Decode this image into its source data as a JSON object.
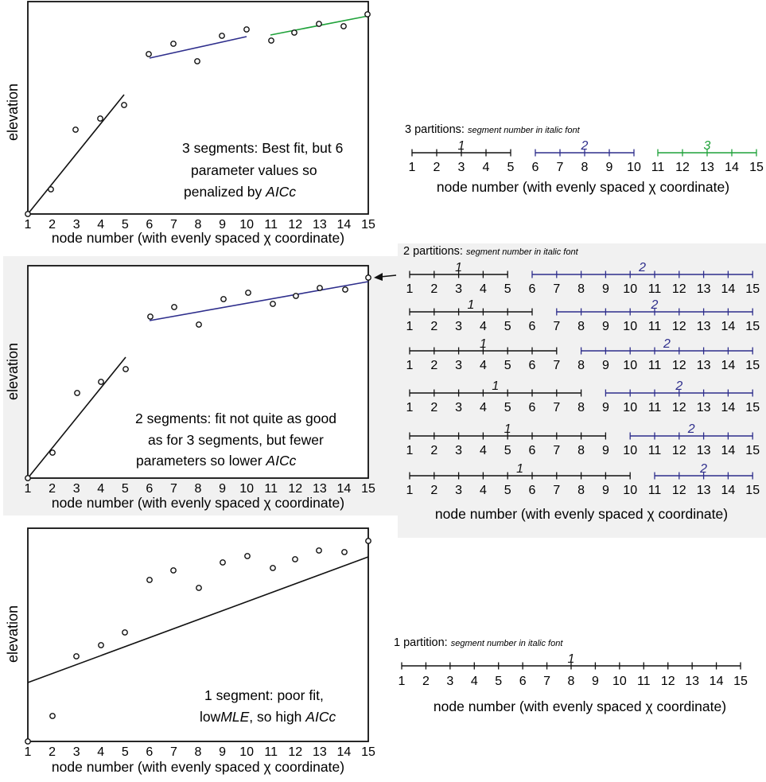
{
  "colors": {
    "seg1": "#111111",
    "seg2": "#2e2e8c",
    "seg3": "#1fa23a",
    "band": "#f1f1f1",
    "arrow": "#111111"
  },
  "axis_ticks": [
    "1",
    "2",
    "3",
    "4",
    "5",
    "6",
    "7",
    "8",
    "9",
    "10",
    "11",
    "12",
    "13",
    "14",
    "15"
  ],
  "segment_labels": [
    "1",
    "2",
    "3"
  ],
  "panels": {
    "three": {
      "ylabel": "elevation",
      "xlabel_prefix": "node number (with evenly spaced ",
      "xlabel_symbol": "χ",
      "xlabel_suffix": " coordinate)",
      "note_lines": [
        "3 segments: Best fit, but 6",
        "parameter values so",
        "penalized by "
      ],
      "note_em": "AICc"
    },
    "two": {
      "ylabel": "elevation",
      "xlabel_prefix": "node number (with evenly spaced ",
      "xlabel_symbol": "χ",
      "xlabel_suffix": "  coordinate)",
      "note_lines": [
        "2 segments: fit not quite as good",
        "as for 3 segments, but fewer",
        "parameters so lower "
      ],
      "note_em": "AICc"
    },
    "one": {
      "ylabel": "elevation",
      "xlabel_prefix": "node number (with evenly spaced ",
      "xlabel_symbol": "χ",
      "xlabel_suffix": " coordinate)",
      "note_lines": [
        "1 segment: poor fit,",
        "low",
        ", so high "
      ],
      "note_em1": "MLE",
      "note_em2": "AICc"
    }
  },
  "partitions": {
    "three": {
      "heading": "3 partitions: ",
      "heading_small": "segment number in italic font",
      "xlabel_prefix": "node number (with evenly spaced ",
      "xlabel_symbol": "χ",
      "xlabel_suffix": "  coordinate)"
    },
    "two": {
      "heading": "2 partitions: ",
      "heading_small": "segment number in italic font",
      "xlabel_prefix": "node number (with evenly spaced ",
      "xlabel_symbol": "χ",
      "xlabel_suffix": " coordinate)"
    },
    "one": {
      "heading": "1 partition: ",
      "heading_small": "segment number in italic font",
      "xlabel_prefix": "node number (with evenly spaced ",
      "xlabel_symbol": "χ",
      "xlabel_suffix": "  coordinate)"
    }
  }
}
